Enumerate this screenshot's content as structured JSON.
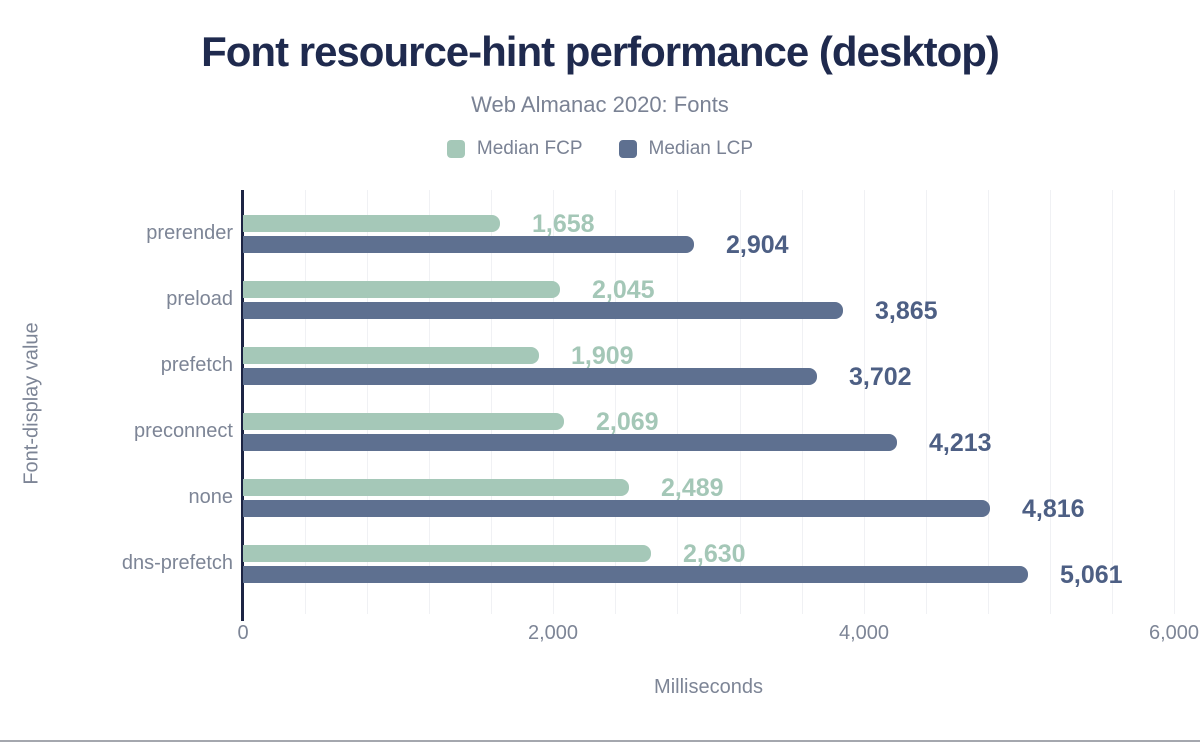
{
  "chart_data": {
    "type": "bar",
    "orientation": "horizontal",
    "title": "Font resource-hint performance (desktop)",
    "subtitle": "Web Almanac 2020: Fonts",
    "xlabel": "Milliseconds",
    "ylabel": "Font-display value",
    "categories": [
      "prerender",
      "preload",
      "prefetch",
      "preconnect",
      "none",
      "dns-prefetch"
    ],
    "series": [
      {
        "name": "Median FCP",
        "color": "#a5c8b8",
        "label_color": "#a4c7b7",
        "values": [
          1658,
          2045,
          1909,
          2069,
          2489,
          2630
        ],
        "value_labels": [
          "1,658",
          "2,045",
          "1,909",
          "2,069",
          "2,489",
          "2,630"
        ]
      },
      {
        "name": "Median LCP",
        "color": "#5e7090",
        "label_color": "#4d5f84",
        "values": [
          2904,
          3865,
          3702,
          4213,
          4816,
          5061
        ],
        "value_labels": [
          "2,904",
          "3,865",
          "3,702",
          "4,213",
          "4,816",
          "5,061"
        ]
      }
    ],
    "xlim": [
      0,
      6000
    ],
    "x_ticks": [
      {
        "value": 0,
        "label": "0"
      },
      {
        "value": 2000,
        "label": "2,000"
      },
      {
        "value": 4000,
        "label": "4,000"
      },
      {
        "value": 6000,
        "label": "6,000"
      }
    ],
    "minor_grid_step_ms": 400,
    "grid": true,
    "legend_position": "top",
    "axis_color": "#1c2444",
    "grid_color": "#f0f1f4",
    "tick_text_color": "#7d8596",
    "title_color": "#1f2a4e",
    "subtitle_color": "#7a8294"
  }
}
